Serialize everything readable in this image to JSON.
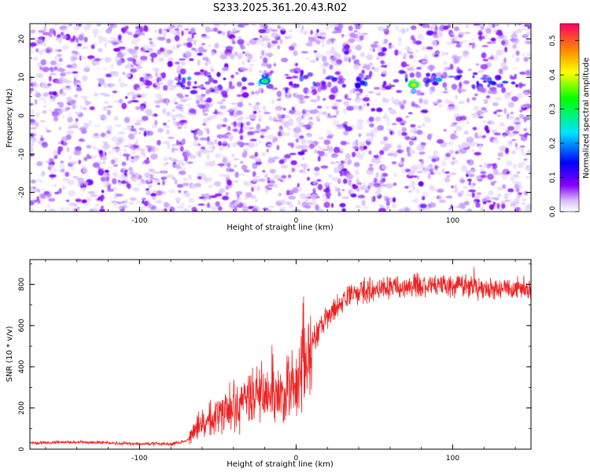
{
  "title": "S233.2025.361.20.43.R02",
  "chart_data": [
    {
      "type": "heatmap",
      "xlabel": "Height of straight line (km)",
      "ylabel": "Frequency (Hz)",
      "xlim": [
        -170,
        150
      ],
      "ylim": [
        -25,
        24
      ],
      "xticks": [
        -100,
        0,
        100
      ],
      "yticks": [
        -20,
        -10,
        0,
        10,
        20
      ],
      "colorbar": {
        "label": "Normalized spectral amplitude",
        "range": [
          0,
          0.55
        ],
        "ticks": [
          0.0,
          0.1,
          0.2,
          0.3,
          0.4,
          0.5
        ],
        "colors": [
          "#ffffff",
          "#8800ff",
          "#0000ff",
          "#00e5ff",
          "#00ff00",
          "#ffff00",
          "#ff8800",
          "#ff0066"
        ]
      },
      "band": {
        "frequency_hz": 9,
        "x_range": [
          -75,
          150
        ],
        "peaks": [
          {
            "x": -20,
            "y": 9,
            "value": 0.3
          },
          {
            "x": 75,
            "y": 8,
            "value": 0.42
          }
        ]
      }
    },
    {
      "type": "line",
      "xlabel": "Height of straight line (km)",
      "ylabel": "SNR (10 * v/v)",
      "xlim": [
        -170,
        150
      ],
      "ylim": [
        0,
        920
      ],
      "xticks": [
        -100,
        0,
        100
      ],
      "yticks": [
        0,
        200,
        400,
        600,
        800
      ],
      "color": "#ee2222",
      "profile": [
        [
          -170,
          30
        ],
        [
          -140,
          35
        ],
        [
          -110,
          28
        ],
        [
          -80,
          25
        ],
        [
          -70,
          40
        ],
        [
          -62,
          110
        ],
        [
          -50,
          170
        ],
        [
          -40,
          200
        ],
        [
          -30,
          240
        ],
        [
          -20,
          250
        ],
        [
          -10,
          260
        ],
        [
          0,
          330
        ],
        [
          10,
          520
        ],
        [
          20,
          640
        ],
        [
          30,
          720
        ],
        [
          40,
          760
        ],
        [
          60,
          790
        ],
        [
          80,
          800
        ],
        [
          100,
          790
        ],
        [
          120,
          780
        ],
        [
          150,
          780
        ]
      ]
    }
  ]
}
